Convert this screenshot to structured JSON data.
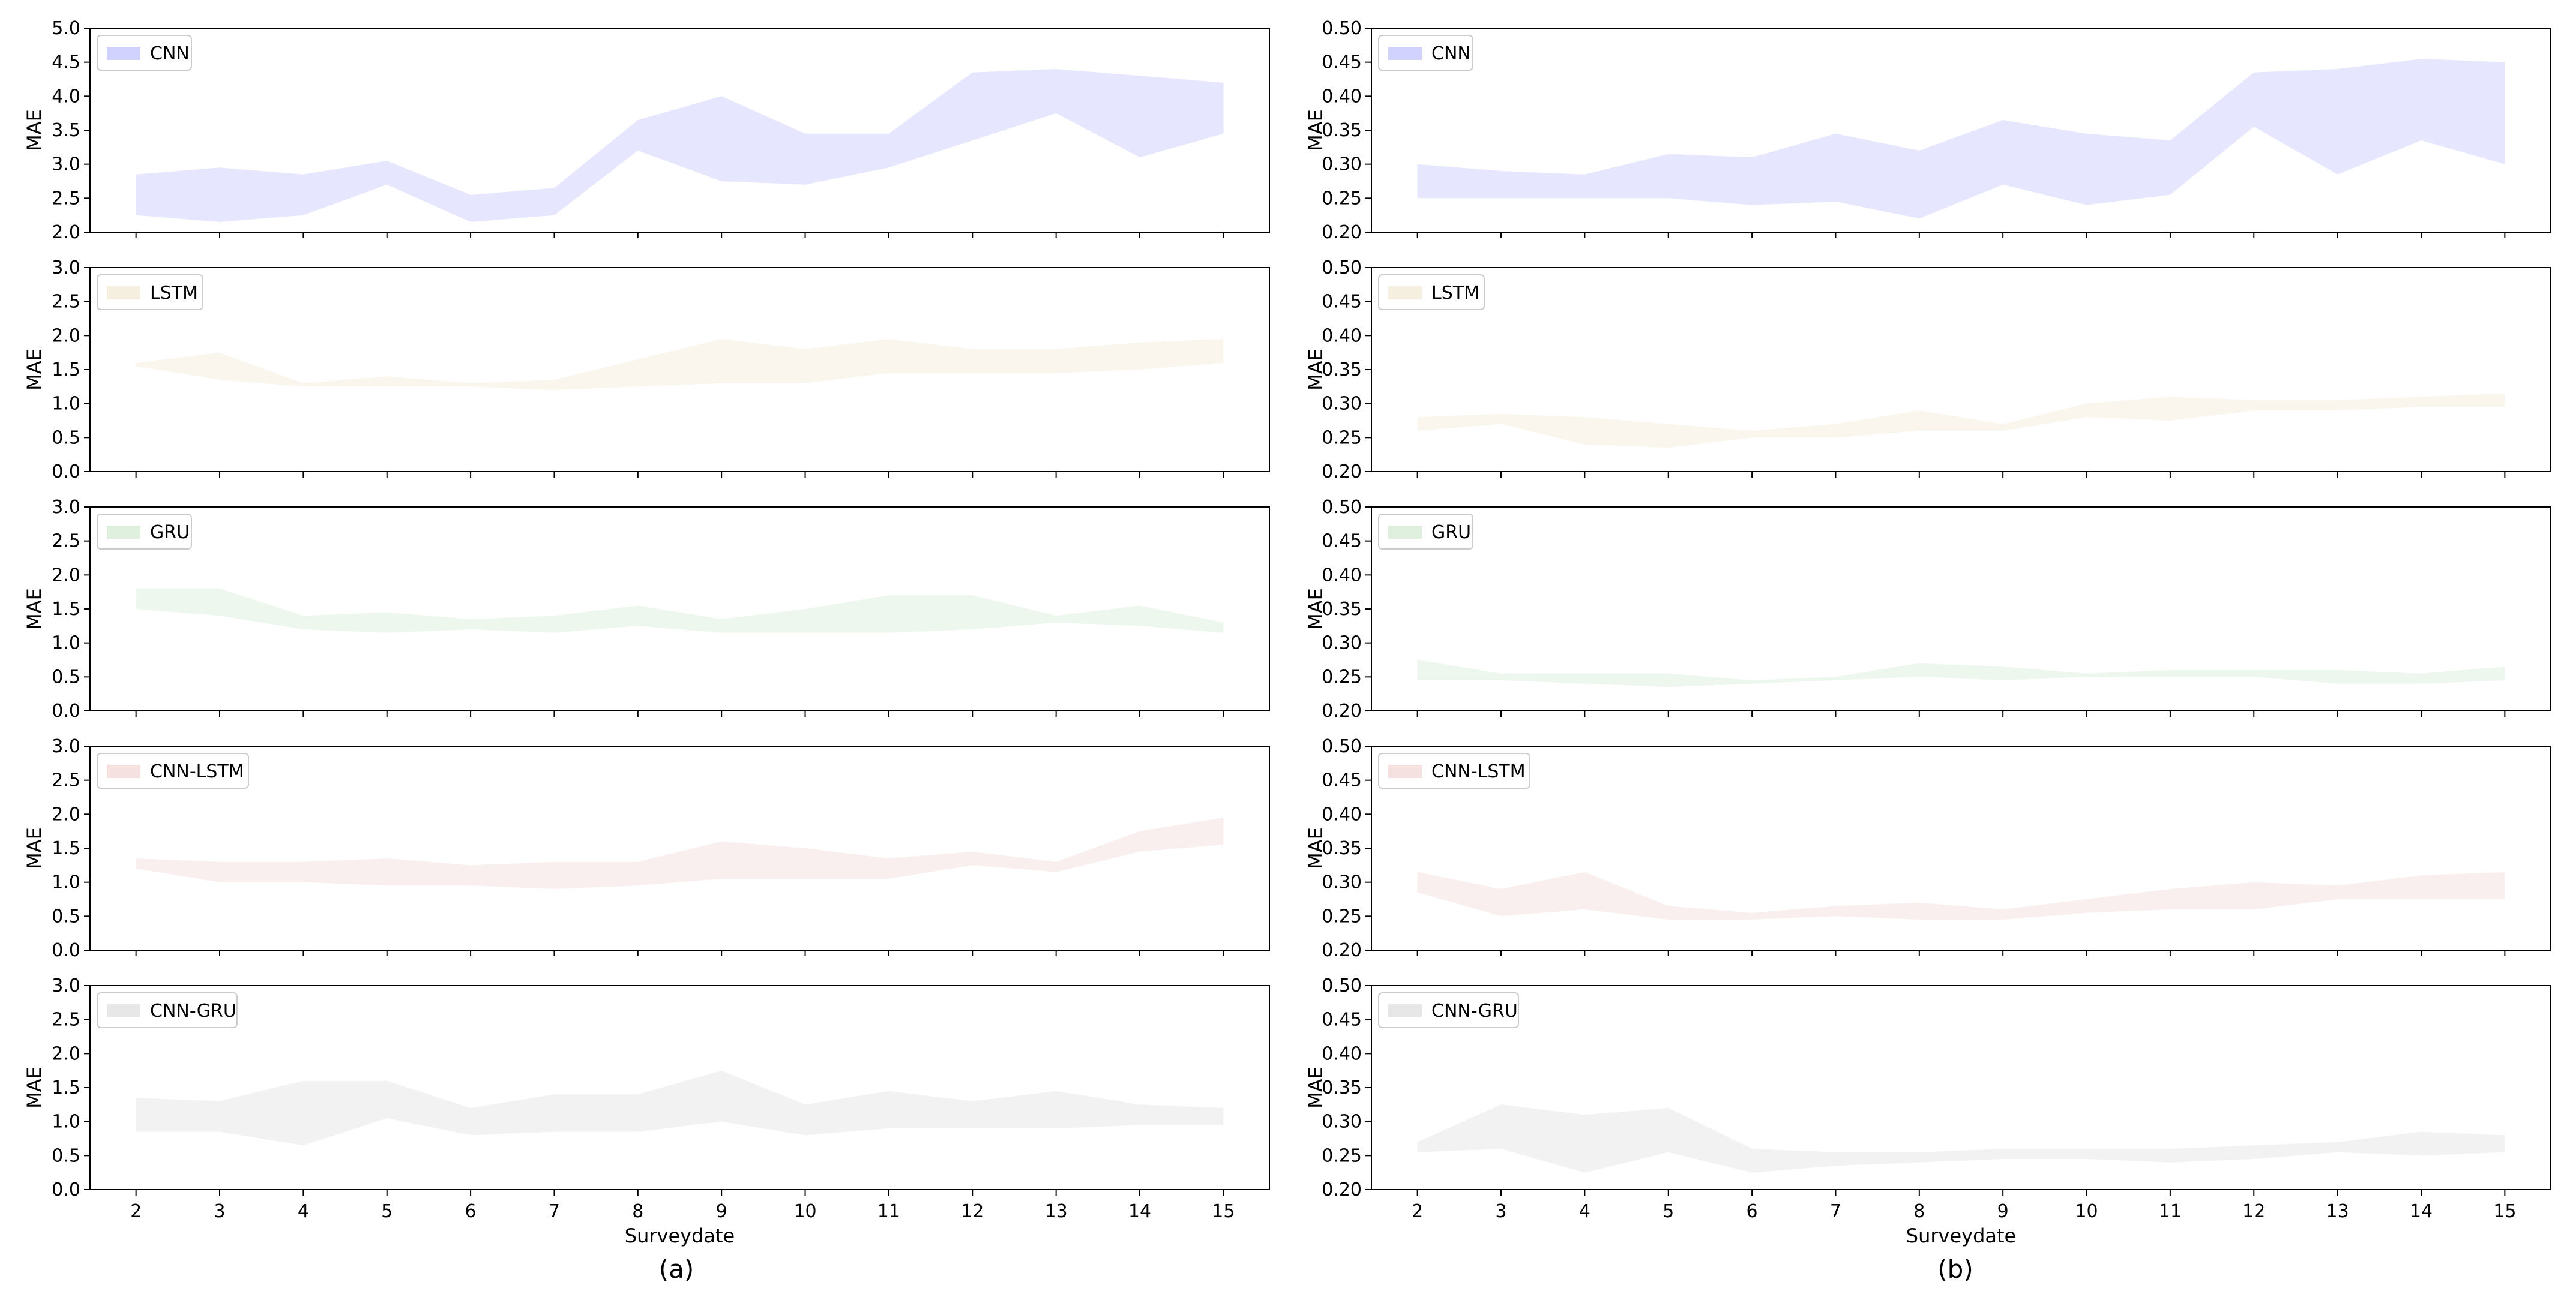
{
  "chart_data": [
    {
      "type": "area",
      "panel": "a",
      "legend": "CNN",
      "color": "#a5a5ff",
      "ylabel": "MAE",
      "ylim": [
        2.0,
        5.0
      ],
      "yticks": [
        "2.0",
        "2.5",
        "3.0",
        "3.5",
        "4.0",
        "4.5",
        "5.0"
      ],
      "x": [
        2,
        3,
        4,
        5,
        6,
        7,
        8,
        9,
        10,
        11,
        12,
        13,
        14,
        15
      ],
      "lower": [
        2.25,
        2.15,
        2.25,
        2.7,
        2.15,
        2.25,
        3.2,
        2.75,
        2.7,
        2.95,
        3.35,
        3.75,
        3.1,
        3.45
      ],
      "upper": [
        2.85,
        2.95,
        2.85,
        3.05,
        2.55,
        2.65,
        3.65,
        4.0,
        3.45,
        3.45,
        4.35,
        4.4,
        4.3,
        4.2
      ]
    },
    {
      "type": "area",
      "panel": "a",
      "legend": "LSTM",
      "color": "#ecdfc0",
      "ylabel": "MAE",
      "ylim": [
        0.0,
        3.0
      ],
      "yticks": [
        "0.0",
        "0.5",
        "1.0",
        "1.5",
        "2.0",
        "2.5",
        "3.0"
      ],
      "x": [
        2,
        3,
        4,
        5,
        6,
        7,
        8,
        9,
        10,
        11,
        12,
        13,
        14,
        15
      ],
      "lower": [
        1.55,
        1.35,
        1.25,
        1.25,
        1.25,
        1.2,
        1.25,
        1.3,
        1.3,
        1.45,
        1.45,
        1.45,
        1.5,
        1.6
      ],
      "upper": [
        1.6,
        1.75,
        1.3,
        1.4,
        1.3,
        1.35,
        1.65,
        1.95,
        1.8,
        1.95,
        1.8,
        1.8,
        1.9,
        1.95
      ]
    },
    {
      "type": "area",
      "panel": "a",
      "legend": "GRU",
      "color": "#bfe1bf",
      "ylabel": "MAE",
      "ylim": [
        0.0,
        3.0
      ],
      "yticks": [
        "0.0",
        "0.5",
        "1.0",
        "1.5",
        "2.0",
        "2.5",
        "3.0"
      ],
      "x": [
        2,
        3,
        4,
        5,
        6,
        7,
        8,
        9,
        10,
        11,
        12,
        13,
        14,
        15
      ],
      "lower": [
        1.5,
        1.4,
        1.2,
        1.15,
        1.2,
        1.15,
        1.25,
        1.15,
        1.15,
        1.15,
        1.2,
        1.3,
        1.25,
        1.15
      ],
      "upper": [
        1.8,
        1.8,
        1.4,
        1.45,
        1.35,
        1.4,
        1.55,
        1.35,
        1.5,
        1.7,
        1.7,
        1.4,
        1.55,
        1.3
      ]
    },
    {
      "type": "area",
      "panel": "a",
      "legend": "CNN-LSTM",
      "color": "#eec4c4",
      "ylabel": "MAE",
      "ylim": [
        0.0,
        3.0
      ],
      "yticks": [
        "0.0",
        "0.5",
        "1.0",
        "1.5",
        "2.0",
        "2.5",
        "3.0"
      ],
      "x": [
        2,
        3,
        4,
        5,
        6,
        7,
        8,
        9,
        10,
        11,
        12,
        13,
        14,
        15
      ],
      "lower": [
        1.2,
        1.0,
        1.0,
        0.95,
        0.95,
        0.9,
        0.95,
        1.05,
        1.05,
        1.05,
        1.25,
        1.15,
        1.45,
        1.55
      ],
      "upper": [
        1.35,
        1.3,
        1.3,
        1.35,
        1.25,
        1.3,
        1.3,
        1.6,
        1.5,
        1.35,
        1.45,
        1.3,
        1.75,
        1.95
      ]
    },
    {
      "type": "area",
      "panel": "a",
      "legend": "CNN-GRU",
      "color": "#d0d0d0",
      "ylabel": "MAE",
      "ylim": [
        0.0,
        3.0
      ],
      "yticks": [
        "0.0",
        "0.5",
        "1.0",
        "1.5",
        "2.0",
        "2.5",
        "3.0"
      ],
      "x": [
        2,
        3,
        4,
        5,
        6,
        7,
        8,
        9,
        10,
        11,
        12,
        13,
        14,
        15
      ],
      "lower": [
        0.85,
        0.85,
        0.65,
        1.05,
        0.8,
        0.85,
        0.85,
        1.0,
        0.8,
        0.9,
        0.9,
        0.9,
        0.95,
        0.95
      ],
      "upper": [
        1.35,
        1.3,
        1.6,
        1.6,
        1.2,
        1.4,
        1.4,
        1.75,
        1.25,
        1.45,
        1.3,
        1.45,
        1.25,
        1.2
      ],
      "xlabel": "Surveydate"
    },
    {
      "type": "area",
      "panel": "b",
      "legend": "CNN",
      "color": "#a5a5ff",
      "ylabel": "MAE",
      "ylim": [
        0.2,
        0.5
      ],
      "yticks": [
        "0.20",
        "0.25",
        "0.30",
        "0.35",
        "0.40",
        "0.45",
        "0.50"
      ],
      "x": [
        2,
        3,
        4,
        5,
        6,
        7,
        8,
        9,
        10,
        11,
        12,
        13,
        14,
        15
      ],
      "lower": [
        0.25,
        0.25,
        0.25,
        0.25,
        0.24,
        0.245,
        0.22,
        0.27,
        0.24,
        0.255,
        0.355,
        0.285,
        0.335,
        0.3
      ],
      "upper": [
        0.3,
        0.29,
        0.285,
        0.315,
        0.31,
        0.345,
        0.32,
        0.365,
        0.345,
        0.335,
        0.435,
        0.44,
        0.455,
        0.45
      ]
    },
    {
      "type": "area",
      "panel": "b",
      "legend": "LSTM",
      "color": "#ecdfc0",
      "ylabel": "MAE",
      "ylim": [
        0.2,
        0.5
      ],
      "yticks": [
        "0.20",
        "0.25",
        "0.30",
        "0.35",
        "0.40",
        "0.45",
        "0.50"
      ],
      "x": [
        2,
        3,
        4,
        5,
        6,
        7,
        8,
        9,
        10,
        11,
        12,
        13,
        14,
        15
      ],
      "lower": [
        0.26,
        0.27,
        0.24,
        0.235,
        0.25,
        0.25,
        0.26,
        0.26,
        0.28,
        0.275,
        0.29,
        0.29,
        0.295,
        0.295
      ],
      "upper": [
        0.28,
        0.285,
        0.28,
        0.27,
        0.26,
        0.27,
        0.29,
        0.27,
        0.3,
        0.31,
        0.305,
        0.305,
        0.31,
        0.315
      ]
    },
    {
      "type": "area",
      "panel": "b",
      "legend": "GRU",
      "color": "#bfe1bf",
      "ylabel": "MAE",
      "ylim": [
        0.2,
        0.5
      ],
      "yticks": [
        "0.20",
        "0.25",
        "0.30",
        "0.35",
        "0.40",
        "0.45",
        "0.50"
      ],
      "x": [
        2,
        3,
        4,
        5,
        6,
        7,
        8,
        9,
        10,
        11,
        12,
        13,
        14,
        15
      ],
      "lower": [
        0.245,
        0.245,
        0.24,
        0.235,
        0.24,
        0.245,
        0.25,
        0.245,
        0.25,
        0.25,
        0.25,
        0.24,
        0.24,
        0.245
      ],
      "upper": [
        0.275,
        0.255,
        0.255,
        0.255,
        0.245,
        0.25,
        0.27,
        0.265,
        0.255,
        0.26,
        0.26,
        0.26,
        0.255,
        0.265
      ]
    },
    {
      "type": "area",
      "panel": "b",
      "legend": "CNN-LSTM",
      "color": "#eec4c4",
      "ylabel": "MAE",
      "ylim": [
        0.2,
        0.5
      ],
      "yticks": [
        "0.20",
        "0.25",
        "0.30",
        "0.35",
        "0.40",
        "0.45",
        "0.50"
      ],
      "x": [
        2,
        3,
        4,
        5,
        6,
        7,
        8,
        9,
        10,
        11,
        12,
        13,
        14,
        15
      ],
      "lower": [
        0.285,
        0.25,
        0.26,
        0.245,
        0.245,
        0.25,
        0.245,
        0.245,
        0.255,
        0.26,
        0.26,
        0.275,
        0.275,
        0.275
      ],
      "upper": [
        0.315,
        0.29,
        0.315,
        0.265,
        0.255,
        0.265,
        0.27,
        0.26,
        0.275,
        0.29,
        0.3,
        0.295,
        0.31,
        0.315
      ]
    },
    {
      "type": "area",
      "panel": "b",
      "legend": "CNN-GRU",
      "color": "#d0d0d0",
      "ylabel": "MAE",
      "ylim": [
        0.2,
        0.5
      ],
      "yticks": [
        "0.20",
        "0.25",
        "0.30",
        "0.35",
        "0.40",
        "0.45",
        "0.50"
      ],
      "x": [
        2,
        3,
        4,
        5,
        6,
        7,
        8,
        9,
        10,
        11,
        12,
        13,
        14,
        15
      ],
      "lower": [
        0.255,
        0.26,
        0.225,
        0.255,
        0.225,
        0.235,
        0.24,
        0.245,
        0.245,
        0.24,
        0.245,
        0.255,
        0.25,
        0.255
      ],
      "upper": [
        0.27,
        0.325,
        0.31,
        0.32,
        0.26,
        0.255,
        0.255,
        0.26,
        0.26,
        0.26,
        0.265,
        0.27,
        0.285,
        0.28
      ],
      "xlabel": "Surveydate"
    }
  ],
  "captions": {
    "a": "(a)",
    "b": "(b)"
  }
}
